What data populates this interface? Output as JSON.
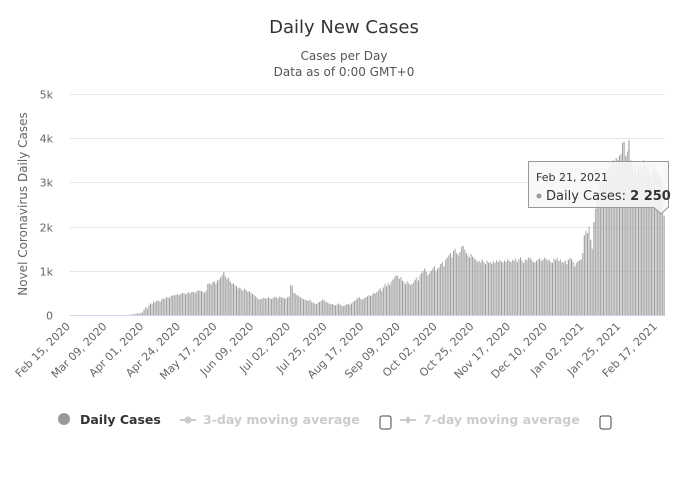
{
  "chart_data": {
    "type": "bar",
    "title": "Daily New Cases",
    "subtitle": "Cases per Day",
    "subtitle2": "Data as of 0:00 GMT+0",
    "ylabel": "Novel Coronavirus Daily Cases",
    "xlabel": "",
    "ylim": [
      0,
      5000
    ],
    "yticks": [
      "0",
      "1k",
      "2k",
      "3k",
      "4k",
      "5k"
    ],
    "grid": true,
    "start_date": "Feb 15, 2020",
    "end_date": "Feb 21, 2021",
    "xtick_interval_days": 23,
    "xticks": [
      "Feb 15, 2020",
      "Mar 09, 2020",
      "Apr 01, 2020",
      "Apr 24, 2020",
      "May 17, 2020",
      "Jun 09, 2020",
      "Jul 02, 2020",
      "Jul 25, 2020",
      "Aug 17, 2020",
      "Sep 09, 2020",
      "Oct 02, 2020",
      "Oct 25, 2020",
      "Nov 17, 2020",
      "Dec 10, 2020",
      "Jan 02, 2021",
      "Jan 25, 2021",
      "Feb 17, 2021"
    ],
    "series": [
      {
        "name": "Daily Cases",
        "color": "#a6a6a6",
        "values": [
          0,
          0,
          0,
          0,
          0,
          0,
          0,
          0,
          0,
          0,
          0,
          0,
          0,
          0,
          0,
          0,
          0,
          0,
          0,
          0,
          0,
          0,
          0,
          0,
          0,
          0,
          0,
          0,
          0,
          0,
          0,
          0,
          0,
          0,
          0,
          0,
          0,
          5,
          10,
          20,
          15,
          30,
          40,
          25,
          50,
          60,
          120,
          180,
          150,
          220,
          260,
          240,
          300,
          280,
          320,
          330,
          300,
          350,
          380,
          360,
          400,
          410,
          390,
          430,
          450,
          440,
          460,
          470,
          450,
          480,
          490,
          500,
          470,
          500,
          510,
          490,
          520,
          530,
          500,
          540,
          550,
          560,
          540,
          520,
          510,
          560,
          700,
          720,
          690,
          740,
          760,
          700,
          780,
          800,
          850,
          900,
          970,
          880,
          820,
          850,
          760,
          700,
          720,
          680,
          650,
          600,
          620,
          580,
          550,
          600,
          560,
          520,
          540,
          500,
          480,
          450,
          420,
          380,
          350,
          360,
          370,
          390,
          380,
          370,
          400,
          380,
          360,
          390,
          410,
          400,
          380,
          420,
          400,
          390,
          380,
          370,
          400,
          420,
          680,
          650,
          500,
          480,
          450,
          430,
          400,
          380,
          360,
          350,
          330,
          320,
          340,
          300,
          280,
          260,
          250,
          270,
          300,
          320,
          350,
          330,
          300,
          280,
          260,
          240,
          250,
          230,
          220,
          240,
          260,
          230,
          210,
          200,
          220,
          240,
          250,
          230,
          260,
          300,
          320,
          350,
          380,
          400,
          360,
          350,
          380,
          400,
          420,
          450,
          430,
          460,
          500,
          480,
          520,
          560,
          600,
          540,
          620,
          700,
          650,
          720,
          680,
          750,
          800,
          850,
          900,
          880,
          820,
          860,
          780,
          740,
          700,
          760,
          720,
          680,
          700,
          750,
          800,
          850,
          780,
          900,
          950,
          1000,
          1050,
          980,
          900,
          950,
          1000,
          1050,
          1100,
          1000,
          1050,
          1080,
          1150,
          1200,
          1100,
          1250,
          1300,
          1350,
          1400,
          1300,
          1450,
          1500,
          1400,
          1350,
          1420,
          1550,
          1560,
          1480,
          1400,
          1350,
          1300,
          1380,
          1320,
          1280,
          1250,
          1200,
          1220,
          1180,
          1250,
          1200,
          1150,
          1230,
          1180,
          1200,
          1160,
          1220,
          1180,
          1240,
          1200,
          1250,
          1210,
          1190,
          1230,
          1200,
          1260,
          1220,
          1200,
          1250,
          1230,
          1280,
          1200,
          1260,
          1300,
          1220,
          1180,
          1260,
          1240,
          1300,
          1290,
          1250,
          1200,
          1180,
          1230,
          1260,
          1280,
          1220,
          1250,
          1300,
          1270,
          1230,
          1250,
          1200,
          1180,
          1280,
          1240,
          1300,
          1220,
          1260,
          1200,
          1180,
          1230,
          1150,
          1250,
          1300,
          1270,
          1200,
          1100,
          1180,
          1220,
          1240,
          1260,
          1400,
          1800,
          1900,
          1850,
          2000,
          1700,
          1500,
          2100,
          2400,
          2600,
          2800,
          3000,
          2900,
          3100,
          3200,
          3300,
          3250,
          3350,
          3400,
          3500,
          3450,
          3550,
          3500,
          3600,
          3650,
          3900,
          3920,
          3600,
          3700,
          3950,
          3500,
          3400,
          3300,
          3450,
          3200,
          3350,
          3400,
          3300,
          3500,
          3400,
          3300,
          3350,
          3200,
          3100,
          3300,
          3400,
          3250,
          3200,
          3150,
          3100,
          2900,
          2250
        ]
      }
    ],
    "legend": {
      "placement": "bottom",
      "items": [
        {
          "label": "Daily Cases",
          "color": "#999999",
          "active": true
        },
        {
          "label": "3-day moving average",
          "color": "#cccccc",
          "active": false
        },
        {
          "label": "7-day moving average",
          "color": "#cccccc",
          "active": false
        }
      ]
    },
    "tooltip": {
      "date": "Feb 21, 2021",
      "label": "Daily Cases: ",
      "value": "2 250"
    }
  }
}
